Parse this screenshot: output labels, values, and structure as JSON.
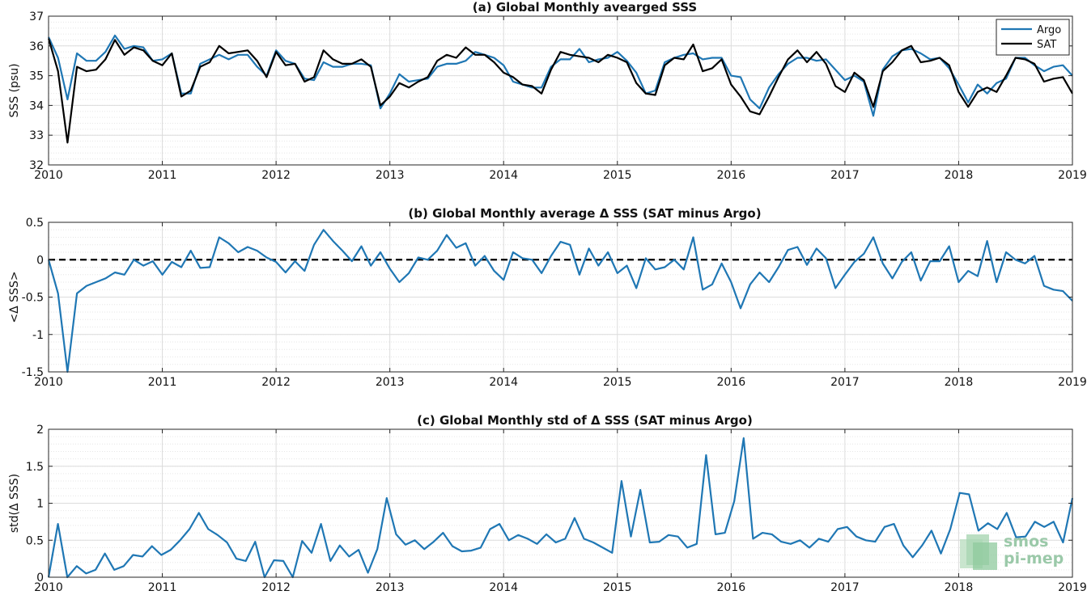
{
  "chart_data": [
    {
      "type": "line",
      "title": "(a) Global Monthly avearged SSS",
      "ylabel": "SSS (psu)",
      "xlabel": "",
      "xlim": [
        2010,
        2019
      ],
      "ylim": [
        32,
        37
      ],
      "yticks": [
        32,
        33,
        34,
        35,
        36,
        37
      ],
      "ytick_labels": [
        "32",
        "33",
        "34",
        "35",
        "36",
        "37"
      ],
      "xticks": [
        2010,
        2011,
        2012,
        2013,
        2014,
        2015,
        2016,
        2017,
        2018,
        2019
      ],
      "xtick_labels": [
        "2010",
        "2011",
        "2012",
        "2013",
        "2014",
        "2015",
        "2016",
        "2017",
        "2018",
        "2019"
      ],
      "grid": true,
      "legend": "top-right",
      "series": [
        {
          "name": "Argo",
          "color": "#1f77b4",
          "values": [
            36.3,
            35.6,
            34.2,
            35.75,
            35.5,
            35.5,
            35.8,
            36.35,
            35.9,
            36.0,
            35.95,
            35.5,
            35.55,
            35.75,
            34.4,
            34.4,
            35.4,
            35.55,
            35.7,
            35.55,
            35.7,
            35.7,
            35.3,
            35.0,
            35.85,
            35.5,
            35.4,
            34.9,
            34.85,
            35.45,
            35.3,
            35.3,
            35.4,
            35.4,
            35.35,
            33.9,
            34.4,
            35.05,
            34.8,
            34.85,
            34.9,
            35.3,
            35.4,
            35.4,
            35.5,
            35.8,
            35.7,
            35.6,
            35.35,
            34.8,
            34.7,
            34.6,
            34.6,
            35.3,
            35.55,
            35.55,
            35.9,
            35.45,
            35.55,
            35.6,
            35.8,
            35.5,
            35.1,
            34.4,
            34.5,
            35.45,
            35.6,
            35.7,
            35.75,
            35.55,
            35.6,
            35.6,
            35.0,
            34.95,
            34.2,
            33.9,
            34.6,
            35.05,
            35.4,
            35.6,
            35.6,
            35.5,
            35.55,
            35.2,
            34.85,
            35.0,
            34.8,
            33.65,
            35.2,
            35.65,
            35.85,
            35.9,
            35.75,
            35.55,
            35.6,
            35.25,
            34.7,
            34.1,
            34.7,
            34.4,
            34.75,
            34.9,
            35.6,
            35.6,
            35.35,
            35.15,
            35.3,
            35.35,
            35.0
          ]
        },
        {
          "name": "SAT",
          "color": "#000000",
          "values": [
            36.25,
            35.15,
            32.75,
            35.3,
            35.15,
            35.2,
            35.55,
            36.2,
            35.7,
            35.95,
            35.85,
            35.5,
            35.35,
            35.75,
            34.3,
            34.5,
            35.3,
            35.45,
            36.0,
            35.75,
            35.8,
            35.85,
            35.5,
            34.95,
            35.8,
            35.35,
            35.4,
            34.8,
            34.95,
            35.85,
            35.55,
            35.4,
            35.4,
            35.55,
            35.3,
            34.0,
            34.3,
            34.75,
            34.6,
            34.8,
            34.95,
            35.5,
            35.7,
            35.6,
            35.95,
            35.7,
            35.7,
            35.45,
            35.1,
            34.95,
            34.7,
            34.65,
            34.4,
            35.2,
            35.8,
            35.7,
            35.65,
            35.6,
            35.45,
            35.7,
            35.6,
            35.45,
            34.75,
            34.4,
            34.35,
            35.35,
            35.6,
            35.55,
            36.05,
            35.15,
            35.25,
            35.55,
            34.7,
            34.3,
            33.8,
            33.7,
            34.3,
            34.95,
            35.55,
            35.85,
            35.45,
            35.8,
            35.4,
            34.65,
            34.45,
            35.1,
            34.85,
            33.95,
            35.15,
            35.45,
            35.85,
            36.0,
            35.45,
            35.5,
            35.6,
            35.35,
            34.45,
            33.95,
            34.45,
            34.6,
            34.45,
            35.0,
            35.6,
            35.55,
            35.4,
            34.8,
            34.9,
            34.95,
            34.4
          ]
        }
      ]
    },
    {
      "type": "line",
      "title": "(b) Global Monthly average Δ SSS (SAT minus Argo)",
      "ylabel": "<Δ SSS>",
      "xlabel": "",
      "xlim": [
        2010,
        2019
      ],
      "ylim": [
        -1.5,
        0.5
      ],
      "yticks": [
        -1.5,
        -1,
        -0.5,
        0,
        0.5
      ],
      "ytick_labels": [
        "-1.5",
        "-1",
        "-0.5",
        "0",
        "0.5"
      ],
      "xticks": [
        2010,
        2011,
        2012,
        2013,
        2014,
        2015,
        2016,
        2017,
        2018,
        2019
      ],
      "xtick_labels": [
        "2010",
        "2011",
        "2012",
        "2013",
        "2014",
        "2015",
        "2016",
        "2017",
        "2018",
        "2019"
      ],
      "grid": true,
      "reference_line": 0,
      "series": [
        {
          "color": "#1f77b4",
          "values": [
            0.0,
            -0.45,
            -1.5,
            -0.45,
            -0.35,
            -0.3,
            -0.25,
            -0.17,
            -0.2,
            0.0,
            -0.08,
            -0.02,
            -0.2,
            -0.03,
            -0.1,
            0.12,
            -0.11,
            -0.1,
            0.3,
            0.22,
            0.1,
            0.17,
            0.12,
            0.03,
            -0.03,
            -0.17,
            -0.02,
            -0.15,
            0.2,
            0.4,
            0.25,
            0.12,
            -0.02,
            0.18,
            -0.08,
            0.1,
            -0.12,
            -0.3,
            -0.18,
            0.03,
            0.0,
            0.12,
            0.33,
            0.16,
            0.22,
            -0.08,
            0.05,
            -0.15,
            -0.27,
            0.1,
            0.02,
            0.0,
            -0.18,
            0.05,
            0.24,
            0.2,
            -0.2,
            0.15,
            -0.08,
            0.1,
            -0.18,
            -0.08,
            -0.38,
            0.02,
            -0.13,
            -0.1,
            0.0,
            -0.13,
            0.3,
            -0.4,
            -0.33,
            -0.05,
            -0.3,
            -0.65,
            -0.33,
            -0.17,
            -0.3,
            -0.1,
            0.13,
            0.17,
            -0.07,
            0.15,
            0.02,
            -0.38,
            -0.2,
            -0.03,
            0.08,
            0.3,
            -0.05,
            -0.25,
            -0.03,
            0.1,
            -0.28,
            -0.02,
            -0.02,
            0.18,
            -0.3,
            -0.15,
            -0.22,
            0.25,
            -0.3,
            0.1,
            0.0,
            -0.05,
            0.05,
            -0.35,
            -0.4,
            -0.42,
            -0.55
          ]
        }
      ]
    },
    {
      "type": "line",
      "title": "(c) Global Monthly std of Δ SSS (SAT minus Argo)",
      "ylabel": "std(Δ SSS)",
      "xlabel": "",
      "xlim": [
        2010,
        2019
      ],
      "ylim": [
        0,
        2
      ],
      "yticks": [
        0,
        0.5,
        1,
        1.5,
        2
      ],
      "ytick_labels": [
        "0",
        "0.5",
        "1",
        "1.5",
        "2"
      ],
      "xticks": [
        2010,
        2011,
        2012,
        2013,
        2014,
        2015,
        2016,
        2017,
        2018,
        2019
      ],
      "xtick_labels": [
        "2010",
        "2011",
        "2012",
        "2013",
        "2014",
        "2015",
        "2016",
        "2017",
        "2018",
        "2019"
      ],
      "grid": true,
      "series": [
        {
          "color": "#1f77b4",
          "values": [
            0.0,
            0.72,
            0.0,
            0.15,
            0.05,
            0.1,
            0.32,
            0.1,
            0.15,
            0.3,
            0.28,
            0.42,
            0.3,
            0.37,
            0.5,
            0.65,
            0.87,
            0.65,
            0.57,
            0.47,
            0.25,
            0.22,
            0.48,
            0.0,
            0.23,
            0.22,
            0.0,
            0.49,
            0.33,
            0.72,
            0.22,
            0.43,
            0.28,
            0.37,
            0.06,
            0.38,
            1.07,
            0.58,
            0.44,
            0.5,
            0.38,
            0.48,
            0.6,
            0.42,
            0.35,
            0.36,
            0.4,
            0.65,
            0.72,
            0.5,
            0.57,
            0.52,
            0.45,
            0.58,
            0.47,
            0.52,
            0.8,
            0.52,
            0.47,
            0.4,
            0.33,
            1.3,
            0.55,
            1.18,
            0.47,
            0.48,
            0.57,
            0.55,
            0.4,
            0.45,
            1.65,
            0.58,
            0.6,
            1.03,
            1.88,
            0.52,
            0.6,
            0.58,
            0.48,
            0.45,
            0.5,
            0.4,
            0.52,
            0.48,
            0.65,
            0.68,
            0.55,
            0.5,
            0.48,
            0.68,
            0.72,
            0.43,
            0.27,
            0.43,
            0.63,
            0.32,
            0.65,
            1.14,
            1.12,
            0.63,
            0.73,
            0.65,
            0.87,
            0.54,
            0.55,
            0.75,
            0.68,
            0.75,
            0.47,
            1.07
          ]
        }
      ]
    }
  ],
  "logo": {
    "line1": "smos",
    "line2": "pi-mep"
  }
}
